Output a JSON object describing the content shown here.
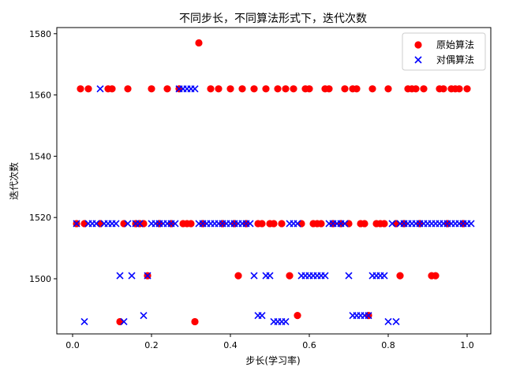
{
  "chart_data": {
    "type": "scatter",
    "title": "不同步长，不同算法形式下，迭代次数",
    "xlabel": "步长(学习率)",
    "ylabel": "迭代次数",
    "xlim": [
      -0.04,
      1.06
    ],
    "ylim": [
      1482,
      1582
    ],
    "xticks": [
      0.0,
      0.2,
      0.4,
      0.6,
      0.8,
      1.0
    ],
    "xtick_labels": [
      "0.0",
      "0.2",
      "0.4",
      "0.6",
      "0.8",
      "1.0"
    ],
    "yticks": [
      1500,
      1520,
      1540,
      1560,
      1580
    ],
    "ytick_labels": [
      "1500",
      "1520",
      "1540",
      "1560",
      "1580"
    ],
    "grid": false,
    "legend_position": "top-right",
    "series": [
      {
        "name": "原始算法",
        "marker": "circle",
        "color": "#ff0000",
        "points": [
          [
            0.01,
            1518
          ],
          [
            0.02,
            1562
          ],
          [
            0.03,
            1518
          ],
          [
            0.04,
            1562
          ],
          [
            0.07,
            1518
          ],
          [
            0.09,
            1562
          ],
          [
            0.1,
            1562
          ],
          [
            0.12,
            1486
          ],
          [
            0.13,
            1518
          ],
          [
            0.14,
            1562
          ],
          [
            0.16,
            1518
          ],
          [
            0.17,
            1518
          ],
          [
            0.18,
            1518
          ],
          [
            0.19,
            1501
          ],
          [
            0.2,
            1562
          ],
          [
            0.22,
            1518
          ],
          [
            0.24,
            1562
          ],
          [
            0.25,
            1518
          ],
          [
            0.27,
            1562
          ],
          [
            0.28,
            1518
          ],
          [
            0.29,
            1518
          ],
          [
            0.3,
            1518
          ],
          [
            0.31,
            1486
          ],
          [
            0.32,
            1577
          ],
          [
            0.33,
            1518
          ],
          [
            0.35,
            1562
          ],
          [
            0.37,
            1562
          ],
          [
            0.38,
            1518
          ],
          [
            0.4,
            1562
          ],
          [
            0.41,
            1518
          ],
          [
            0.42,
            1501
          ],
          [
            0.43,
            1562
          ],
          [
            0.44,
            1518
          ],
          [
            0.46,
            1562
          ],
          [
            0.47,
            1518
          ],
          [
            0.48,
            1518
          ],
          [
            0.49,
            1562
          ],
          [
            0.5,
            1518
          ],
          [
            0.51,
            1518
          ],
          [
            0.52,
            1562
          ],
          [
            0.53,
            1518
          ],
          [
            0.54,
            1562
          ],
          [
            0.55,
            1501
          ],
          [
            0.56,
            1562
          ],
          [
            0.57,
            1488
          ],
          [
            0.58,
            1518
          ],
          [
            0.59,
            1562
          ],
          [
            0.6,
            1562
          ],
          [
            0.61,
            1518
          ],
          [
            0.62,
            1518
          ],
          [
            0.63,
            1518
          ],
          [
            0.64,
            1562
          ],
          [
            0.65,
            1562
          ],
          [
            0.66,
            1518
          ],
          [
            0.68,
            1518
          ],
          [
            0.69,
            1562
          ],
          [
            0.7,
            1518
          ],
          [
            0.71,
            1562
          ],
          [
            0.72,
            1562
          ],
          [
            0.73,
            1518
          ],
          [
            0.74,
            1518
          ],
          [
            0.75,
            1488
          ],
          [
            0.76,
            1562
          ],
          [
            0.77,
            1518
          ],
          [
            0.78,
            1518
          ],
          [
            0.79,
            1518
          ],
          [
            0.8,
            1562
          ],
          [
            0.82,
            1518
          ],
          [
            0.83,
            1501
          ],
          [
            0.84,
            1518
          ],
          [
            0.85,
            1562
          ],
          [
            0.86,
            1562
          ],
          [
            0.87,
            1562
          ],
          [
            0.88,
            1518
          ],
          [
            0.89,
            1562
          ],
          [
            0.91,
            1501
          ],
          [
            0.92,
            1501
          ],
          [
            0.93,
            1562
          ],
          [
            0.94,
            1562
          ],
          [
            0.95,
            1518
          ],
          [
            0.96,
            1562
          ],
          [
            0.97,
            1562
          ],
          [
            0.98,
            1562
          ],
          [
            0.99,
            1518
          ],
          [
            1.0,
            1562
          ]
        ]
      },
      {
        "name": "对偶算法",
        "marker": "x",
        "color": "#0000ff",
        "points": [
          [
            0.01,
            1518
          ],
          [
            0.03,
            1486
          ],
          [
            0.04,
            1518
          ],
          [
            0.05,
            1518
          ],
          [
            0.06,
            1518
          ],
          [
            0.07,
            1562
          ],
          [
            0.08,
            1518
          ],
          [
            0.09,
            1518
          ],
          [
            0.1,
            1518
          ],
          [
            0.11,
            1518
          ],
          [
            0.12,
            1501
          ],
          [
            0.13,
            1486
          ],
          [
            0.14,
            1518
          ],
          [
            0.15,
            1501
          ],
          [
            0.16,
            1518
          ],
          [
            0.17,
            1518
          ],
          [
            0.18,
            1488
          ],
          [
            0.19,
            1501
          ],
          [
            0.2,
            1518
          ],
          [
            0.21,
            1518
          ],
          [
            0.22,
            1518
          ],
          [
            0.23,
            1518
          ],
          [
            0.24,
            1518
          ],
          [
            0.25,
            1518
          ],
          [
            0.26,
            1518
          ],
          [
            0.27,
            1562
          ],
          [
            0.28,
            1562
          ],
          [
            0.29,
            1562
          ],
          [
            0.3,
            1562
          ],
          [
            0.31,
            1562
          ],
          [
            0.32,
            1518
          ],
          [
            0.33,
            1518
          ],
          [
            0.34,
            1518
          ],
          [
            0.35,
            1518
          ],
          [
            0.36,
            1518
          ],
          [
            0.37,
            1518
          ],
          [
            0.38,
            1518
          ],
          [
            0.39,
            1518
          ],
          [
            0.4,
            1518
          ],
          [
            0.41,
            1518
          ],
          [
            0.42,
            1518
          ],
          [
            0.43,
            1518
          ],
          [
            0.44,
            1518
          ],
          [
            0.45,
            1518
          ],
          [
            0.46,
            1501
          ],
          [
            0.47,
            1488
          ],
          [
            0.48,
            1488
          ],
          [
            0.49,
            1501
          ],
          [
            0.5,
            1501
          ],
          [
            0.51,
            1486
          ],
          [
            0.52,
            1486
          ],
          [
            0.53,
            1486
          ],
          [
            0.54,
            1486
          ],
          [
            0.55,
            1518
          ],
          [
            0.56,
            1518
          ],
          [
            0.57,
            1518
          ],
          [
            0.58,
            1501
          ],
          [
            0.59,
            1501
          ],
          [
            0.6,
            1501
          ],
          [
            0.61,
            1501
          ],
          [
            0.62,
            1501
          ],
          [
            0.63,
            1501
          ],
          [
            0.64,
            1501
          ],
          [
            0.65,
            1518
          ],
          [
            0.66,
            1518
          ],
          [
            0.67,
            1518
          ],
          [
            0.68,
            1518
          ],
          [
            0.69,
            1518
          ],
          [
            0.7,
            1501
          ],
          [
            0.71,
            1488
          ],
          [
            0.72,
            1488
          ],
          [
            0.73,
            1488
          ],
          [
            0.74,
            1488
          ],
          [
            0.75,
            1488
          ],
          [
            0.76,
            1501
          ],
          [
            0.77,
            1501
          ],
          [
            0.78,
            1501
          ],
          [
            0.79,
            1501
          ],
          [
            0.8,
            1486
          ],
          [
            0.81,
            1518
          ],
          [
            0.82,
            1486
          ],
          [
            0.83,
            1518
          ],
          [
            0.84,
            1518
          ],
          [
            0.85,
            1518
          ],
          [
            0.86,
            1518
          ],
          [
            0.87,
            1518
          ],
          [
            0.88,
            1518
          ],
          [
            0.89,
            1518
          ],
          [
            0.9,
            1518
          ],
          [
            0.91,
            1518
          ],
          [
            0.92,
            1518
          ],
          [
            0.93,
            1518
          ],
          [
            0.94,
            1518
          ],
          [
            0.95,
            1518
          ],
          [
            0.96,
            1518
          ],
          [
            0.97,
            1518
          ],
          [
            0.98,
            1518
          ],
          [
            0.99,
            1518
          ],
          [
            1.0,
            1518
          ],
          [
            1.01,
            1518
          ]
        ]
      }
    ]
  }
}
